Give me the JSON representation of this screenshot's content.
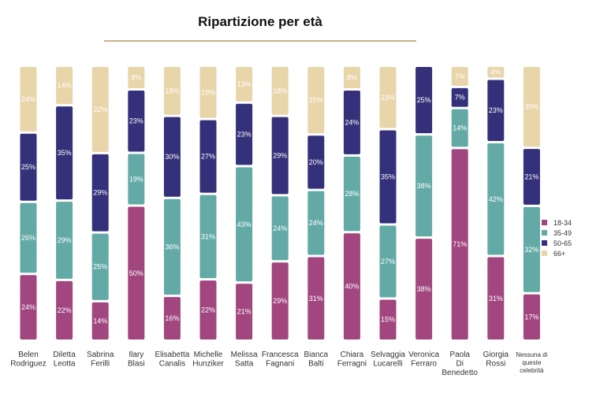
{
  "chart_data": {
    "type": "bar",
    "stacked": true,
    "title": "Ripartizione per età",
    "categories": [
      [
        "Belen",
        "Rodriguez"
      ],
      [
        "Diletta",
        "Leotta"
      ],
      [
        "Sabrina",
        "Ferilli"
      ],
      [
        "Ilary",
        "Blasi"
      ],
      [
        "Elisabetta",
        "Canalis"
      ],
      [
        "Michelle",
        "Hunziker"
      ],
      [
        "Melissa",
        "Satta"
      ],
      [
        "Francesca",
        "Fagnani"
      ],
      [
        "Bianca",
        "Balti"
      ],
      [
        "Chiara",
        "Ferragni"
      ],
      [
        "Selvaggia",
        "Lucarelli"
      ],
      [
        "Veronica",
        "Ferraro"
      ],
      [
        "Paola",
        "Di",
        "Benedetto"
      ],
      [
        "Giorgia",
        "Rossi"
      ],
      [
        "Nessuna di",
        "queste",
        "celebrità"
      ]
    ],
    "series": [
      {
        "name": "18-34",
        "color": "#a1467f",
        "values": [
          24,
          22,
          14,
          50,
          16,
          22,
          21,
          29,
          31,
          40,
          15,
          38,
          71,
          31,
          17
        ]
      },
      {
        "name": "35-49",
        "color": "#63aaa6",
        "values": [
          26,
          29,
          25,
          19,
          36,
          31,
          43,
          24,
          24,
          28,
          27,
          38,
          14,
          42,
          32
        ]
      },
      {
        "name": "50-65",
        "color": "#34307a",
        "values": [
          25,
          35,
          29,
          23,
          30,
          27,
          23,
          29,
          20,
          24,
          35,
          25,
          7,
          23,
          21
        ]
      },
      {
        "name": "66+",
        "color": "#e8d5aa",
        "values": [
          24,
          14,
          32,
          8,
          18,
          19,
          13,
          18,
          25,
          8,
          23,
          0,
          7,
          4,
          30
        ]
      }
    ],
    "value_suffix": "%",
    "legend_position": "right",
    "grid": false
  }
}
